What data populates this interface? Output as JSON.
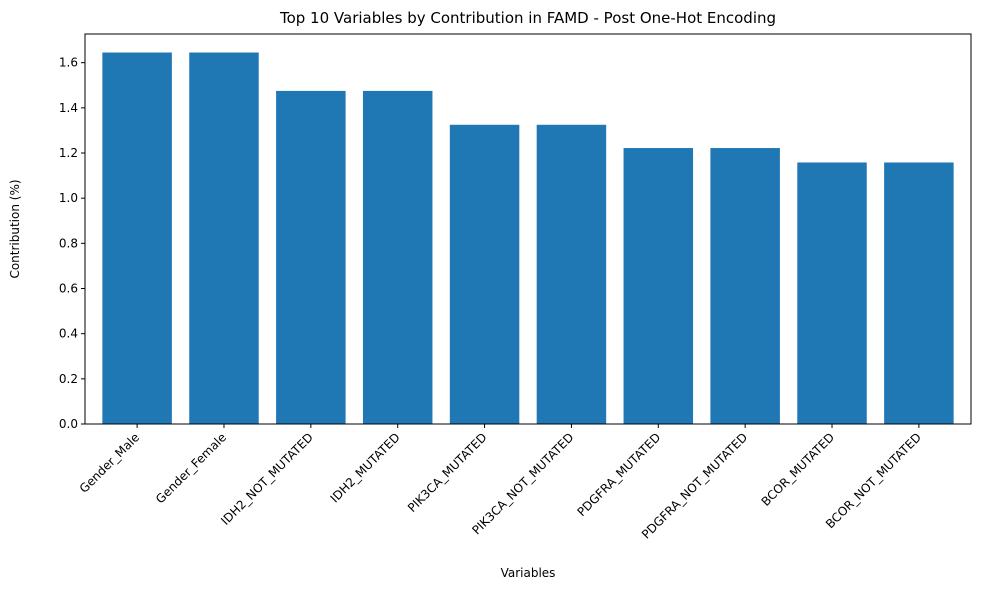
{
  "chart_data": {
    "type": "bar",
    "title": "Top 10 Variables by Contribution in FAMD - Post One-Hot Encoding",
    "xlabel": "Variables",
    "ylabel": "Contribution (%)",
    "categories": [
      "Gender_Male",
      "Gender_Female",
      "IDH2_NOT_MUTATED",
      "IDH2_MUTATED",
      "PIK3CA_MUTATED",
      "PIK3CA_NOT_MUTATED",
      "PDGFRA_MUTATED",
      "PDGFRA_NOT_MUTATED",
      "BCOR_MUTATED",
      "BCOR_NOT_MUTATED"
    ],
    "values": [
      1.645,
      1.645,
      1.475,
      1.475,
      1.325,
      1.325,
      1.222,
      1.222,
      1.158,
      1.158
    ],
    "ylim": [
      0,
      1.727
    ],
    "yticks": [
      "0.0",
      "0.2",
      "0.4",
      "0.6",
      "0.8",
      "1.0",
      "1.2",
      "1.4",
      "1.6"
    ],
    "grid": false,
    "legend": "none",
    "bar_color": "#1f77b4"
  }
}
